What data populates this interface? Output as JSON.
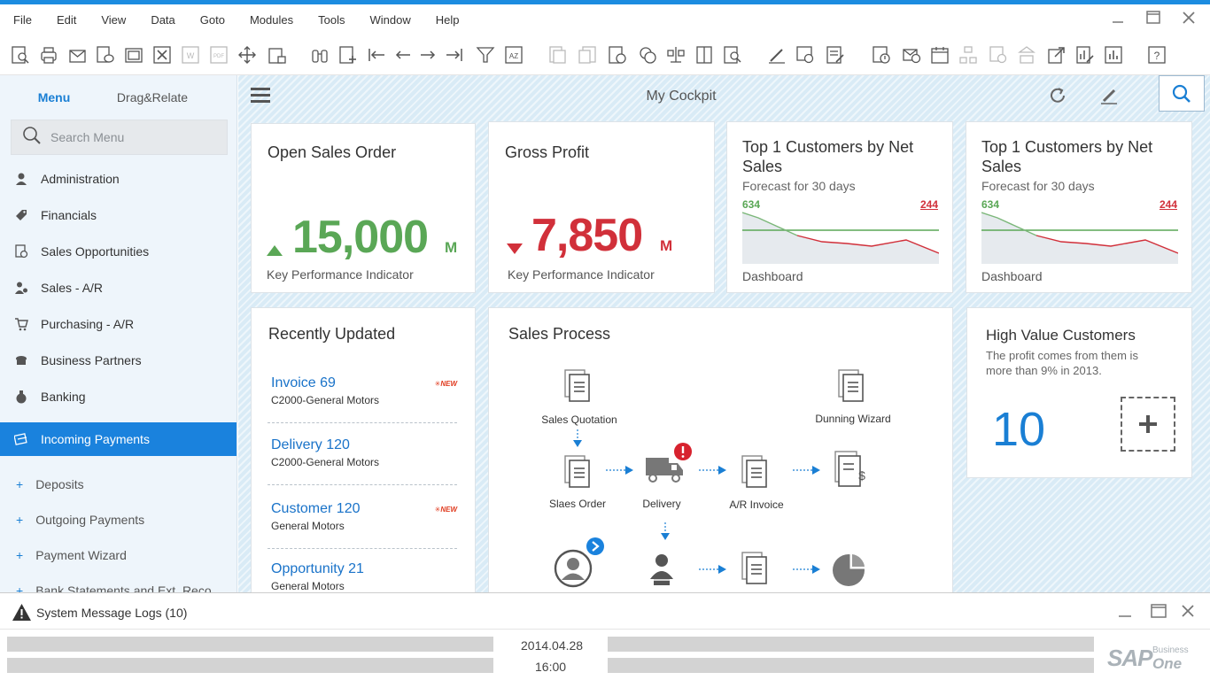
{
  "menubar": {
    "items": [
      "File",
      "Edit",
      "View",
      "Data",
      "Goto",
      "Modules",
      "Tools",
      "Window",
      "Help"
    ]
  },
  "sidebar": {
    "tabs": [
      "Menu",
      "Drag&Relate"
    ],
    "search_placeholder": "Search Menu",
    "items": [
      {
        "label": "Administration",
        "icon": "user-icon"
      },
      {
        "label": "Financials",
        "icon": "tag-icon"
      },
      {
        "label": "Sales Opportunities",
        "icon": "document-icon"
      },
      {
        "label": "Sales - A/R",
        "icon": "person-money-icon"
      },
      {
        "label": "Purchasing - A/R",
        "icon": "cart-icon"
      },
      {
        "label": "Business Partners",
        "icon": "partners-icon"
      },
      {
        "label": "Banking",
        "icon": "money-bag-icon"
      }
    ],
    "active_item": "Incoming Payments",
    "sub_items": [
      "Deposits",
      "Outgoing Payments",
      "Payment Wizard",
      "Bank Statements and Ext. Reco..."
    ]
  },
  "cockpit": {
    "title": "My Cockpit"
  },
  "tiles": {
    "open_sales": {
      "title": "Open Sales Order",
      "value": "15,000",
      "unit": "M",
      "footer": "Key Performance Indicator",
      "color": "#5aa756"
    },
    "gross_profit": {
      "title": "Gross Profit",
      "value": "7,850",
      "unit": "M",
      "footer": "Key Performance Indicator",
      "color": "#d1303a"
    },
    "top_customers_1": {
      "title": "Top 1 Customers by Net Sales",
      "subtitle": "Forecast for 30 days",
      "high": "634",
      "low": "244",
      "footer": "Dashboard"
    },
    "top_customers_2": {
      "title": "Top 1 Customers by Net Sales",
      "subtitle": "Forecast for 30 days",
      "high": "634",
      "low": "244",
      "footer": "Dashboard"
    },
    "recently_updated": {
      "title": "Recently Updated",
      "items": [
        {
          "link": "Invoice 69",
          "sub": "C2000-General Motors",
          "badge": "NEW"
        },
        {
          "link": "Delivery 120",
          "sub": "C2000-General Motors",
          "badge": ""
        },
        {
          "link": "Customer 120",
          "sub": "General Motors",
          "badge": "NEW"
        },
        {
          "link": "Opportunity 21",
          "sub": "General Motors",
          "badge": ""
        }
      ]
    },
    "sales_process": {
      "title": "Sales Process",
      "labels": {
        "quotation": "Sales Quotation",
        "dunning": "Dunning Wizard",
        "order": "Slaes Order",
        "delivery": "Delivery",
        "invoice": "A/R Invoice"
      }
    },
    "high_value": {
      "title": "High Value Customers",
      "description": "The profit comes from them is more than 9% in 2013.",
      "value": "10"
    }
  },
  "status": {
    "message": "System Message Logs (10)"
  },
  "footer": {
    "date": "2014.04.28",
    "time": "16:00",
    "logo_text": "SAP",
    "logo_sub_1": "Business",
    "logo_sub_2": "One"
  },
  "colors": {
    "accent": "#1a82dd",
    "positive": "#5aa756",
    "negative": "#d1303a"
  }
}
